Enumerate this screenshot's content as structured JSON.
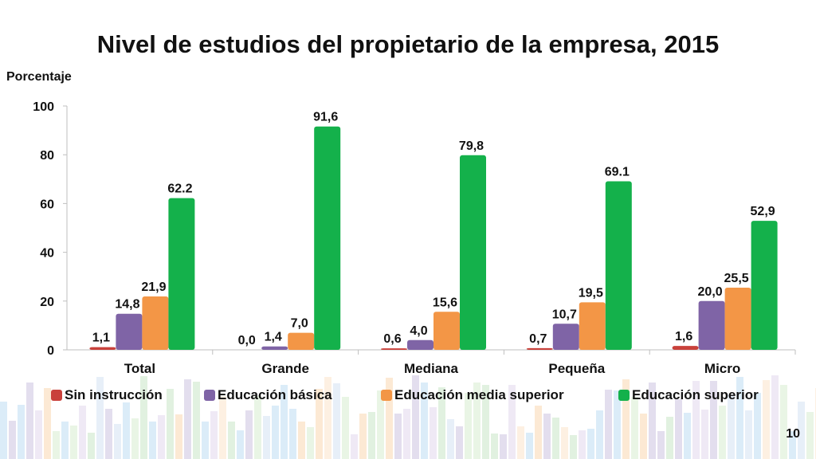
{
  "page": {
    "number": "10"
  },
  "chart_data": {
    "type": "bar",
    "title": "Nivel de estudios del propietario de la empresa, 2015",
    "ylabel": "Porcentaje",
    "xlabel": "",
    "ylim": [
      0,
      100
    ],
    "yticks": [
      0,
      20,
      40,
      60,
      80,
      100
    ],
    "grid": false,
    "legend_position": "bottom",
    "categories": [
      "Total",
      "Grande",
      "Mediana",
      "Pequeña",
      "Micro"
    ],
    "series": [
      {
        "name": "Sin instrucción",
        "color": "#c9413b",
        "values": [
          1.1,
          0.0,
          0.6,
          0.7,
          1.6
        ],
        "labels": [
          "1,1",
          "0,0",
          "0,6",
          "0,7",
          "1,6"
        ]
      },
      {
        "name": "Educación básica",
        "color": "#7f64a6",
        "values": [
          14.8,
          1.4,
          4.0,
          10.7,
          20.0
        ],
        "labels": [
          "14,8",
          "1,4",
          "4,0",
          "10,7",
          "20,0"
        ]
      },
      {
        "name": "Educación media superior",
        "color": "#f39646",
        "values": [
          21.9,
          7.0,
          15.6,
          19.5,
          25.5
        ],
        "labels": [
          "21,9",
          "7,0",
          "15,6",
          "19,5",
          "25,5"
        ]
      },
      {
        "name": "Educación superior",
        "color": "#14b14b",
        "values": [
          62.2,
          91.6,
          79.8,
          69.1,
          52.9
        ],
        "labels": [
          "62.2",
          "91,6",
          "79,8",
          "69.1",
          "52,9"
        ]
      }
    ]
  }
}
